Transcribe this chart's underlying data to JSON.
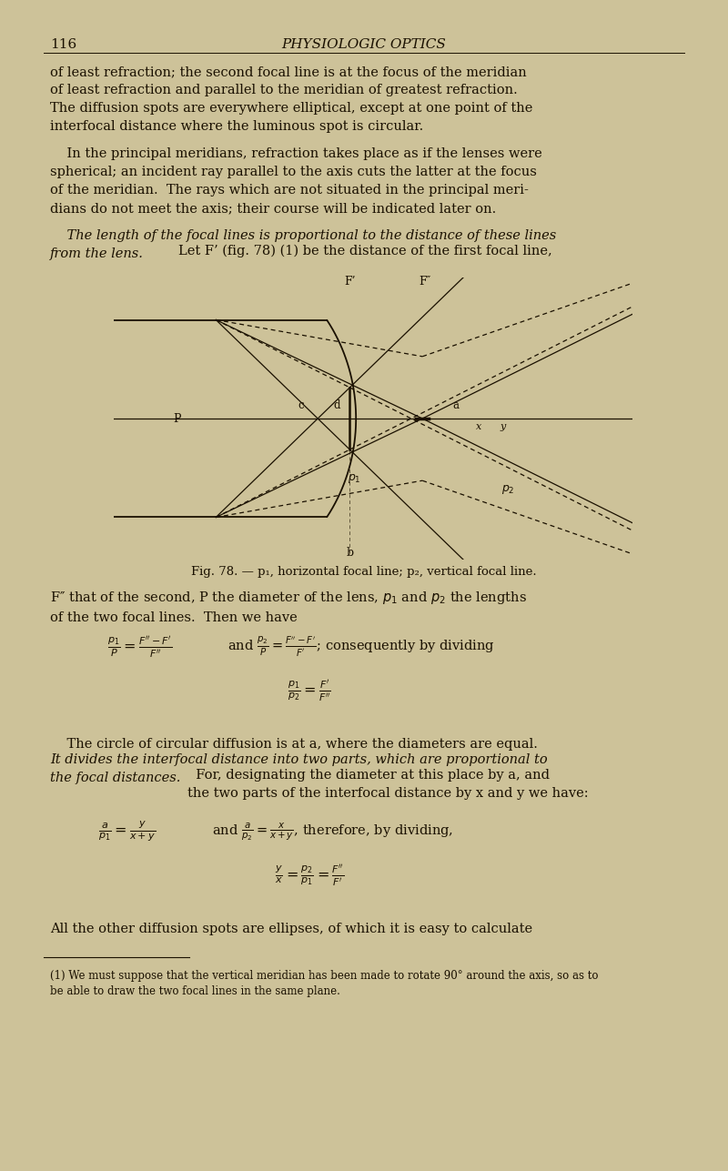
{
  "bg_color": "#cdc299",
  "text_color": "#1a1000",
  "page_num": "116",
  "title": "PHYSIOLOGIC OPTICS",
  "fig_caption": "Fig. 78. — p₁, horizontal focal line; p₂, vertical focal line."
}
